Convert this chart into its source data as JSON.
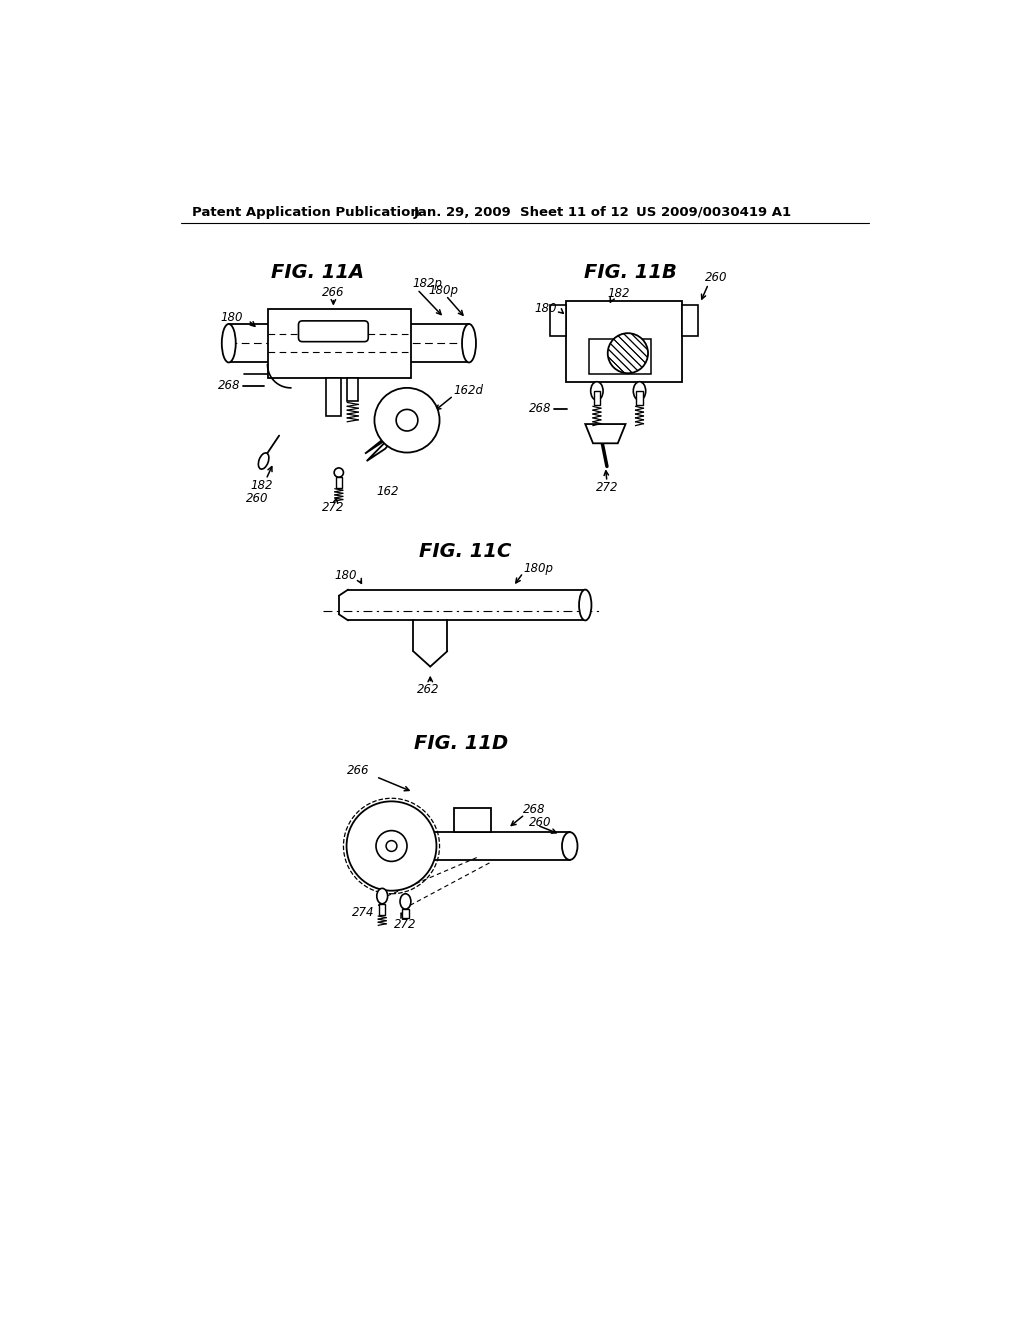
{
  "bg_color": "#ffffff",
  "header_text": "Patent Application Publication",
  "header_date": "Jan. 29, 2009  Sheet 11 of 12",
  "header_patent": "US 2009/0030419 A1",
  "fig11a_title": "FIG. 11A",
  "fig11b_title": "FIG. 11B",
  "fig11c_title": "FIG. 11C",
  "fig11d_title": "FIG. 11D"
}
